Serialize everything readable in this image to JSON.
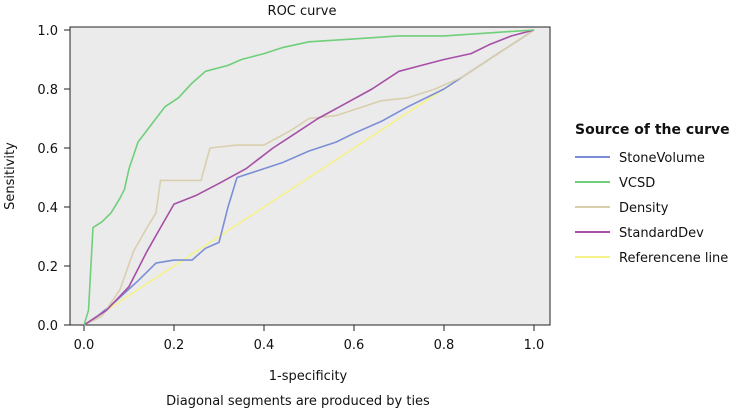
{
  "chart_data": {
    "type": "line",
    "title": "ROC curve",
    "xlabel": "1-specificity",
    "ylabel": "Sensitivity",
    "footnote": "Diagonal segments are produced by ties",
    "xlim": [
      0,
      1
    ],
    "ylim": [
      0,
      1
    ],
    "x_ticks": [
      "0.0",
      "0.2",
      "0.4",
      "0.6",
      "0.8",
      "1.0"
    ],
    "y_ticks": [
      "0.0",
      "0.2",
      "0.4",
      "0.6",
      "0.8",
      "1.0"
    ],
    "legend_title": "Source of the curve",
    "legend_position": "right",
    "grid": false,
    "background": "#ebebeb",
    "series": [
      {
        "name": "StoneVolume",
        "color": "#7b8ed6",
        "points": [
          [
            0,
            0
          ],
          [
            0.03,
            0.03
          ],
          [
            0.07,
            0.08
          ],
          [
            0.12,
            0.15
          ],
          [
            0.16,
            0.21
          ],
          [
            0.2,
            0.22
          ],
          [
            0.24,
            0.22
          ],
          [
            0.27,
            0.26
          ],
          [
            0.3,
            0.28
          ],
          [
            0.32,
            0.4
          ],
          [
            0.34,
            0.5
          ],
          [
            0.38,
            0.52
          ],
          [
            0.44,
            0.55
          ],
          [
            0.5,
            0.59
          ],
          [
            0.56,
            0.62
          ],
          [
            0.6,
            0.65
          ],
          [
            0.66,
            0.69
          ],
          [
            0.72,
            0.74
          ],
          [
            0.8,
            0.8
          ],
          [
            0.86,
            0.86
          ],
          [
            0.92,
            0.92
          ],
          [
            0.97,
            0.97
          ],
          [
            1,
            1
          ]
        ]
      },
      {
        "name": "VCSD",
        "color": "#6fcf7a",
        "points": [
          [
            0,
            0
          ],
          [
            0.01,
            0.05
          ],
          [
            0.02,
            0.33
          ],
          [
            0.04,
            0.35
          ],
          [
            0.06,
            0.38
          ],
          [
            0.08,
            0.43
          ],
          [
            0.09,
            0.46
          ],
          [
            0.1,
            0.53
          ],
          [
            0.12,
            0.62
          ],
          [
            0.15,
            0.68
          ],
          [
            0.18,
            0.74
          ],
          [
            0.21,
            0.77
          ],
          [
            0.24,
            0.82
          ],
          [
            0.27,
            0.86
          ],
          [
            0.32,
            0.88
          ],
          [
            0.35,
            0.9
          ],
          [
            0.4,
            0.92
          ],
          [
            0.44,
            0.94
          ],
          [
            0.5,
            0.96
          ],
          [
            0.6,
            0.97
          ],
          [
            0.7,
            0.98
          ],
          [
            0.8,
            0.98
          ],
          [
            0.9,
            0.99
          ],
          [
            1,
            1
          ]
        ]
      },
      {
        "name": "Density",
        "color": "#d9cfae",
        "points": [
          [
            0,
            0
          ],
          [
            0.04,
            0.03
          ],
          [
            0.08,
            0.12
          ],
          [
            0.11,
            0.25
          ],
          [
            0.14,
            0.33
          ],
          [
            0.16,
            0.38
          ],
          [
            0.17,
            0.49
          ],
          [
            0.22,
            0.49
          ],
          [
            0.26,
            0.49
          ],
          [
            0.28,
            0.6
          ],
          [
            0.34,
            0.61
          ],
          [
            0.4,
            0.61
          ],
          [
            0.46,
            0.66
          ],
          [
            0.5,
            0.7
          ],
          [
            0.56,
            0.71
          ],
          [
            0.62,
            0.74
          ],
          [
            0.66,
            0.76
          ],
          [
            0.72,
            0.77
          ],
          [
            0.78,
            0.8
          ],
          [
            0.84,
            0.84
          ],
          [
            0.9,
            0.9
          ],
          [
            0.95,
            0.95
          ],
          [
            1,
            1
          ]
        ]
      },
      {
        "name": "StandardDev",
        "color": "#a64fa6",
        "points": [
          [
            0,
            0
          ],
          [
            0.05,
            0.05
          ],
          [
            0.1,
            0.13
          ],
          [
            0.14,
            0.25
          ],
          [
            0.17,
            0.33
          ],
          [
            0.2,
            0.41
          ],
          [
            0.25,
            0.44
          ],
          [
            0.3,
            0.48
          ],
          [
            0.36,
            0.53
          ],
          [
            0.42,
            0.6
          ],
          [
            0.47,
            0.65
          ],
          [
            0.52,
            0.7
          ],
          [
            0.58,
            0.75
          ],
          [
            0.64,
            0.8
          ],
          [
            0.7,
            0.86
          ],
          [
            0.75,
            0.88
          ],
          [
            0.8,
            0.9
          ],
          [
            0.86,
            0.92
          ],
          [
            0.9,
            0.95
          ],
          [
            0.95,
            0.98
          ],
          [
            1,
            1
          ]
        ]
      },
      {
        "name": "Referencene line",
        "color": "#f5f28a",
        "points": [
          [
            0,
            0
          ],
          [
            1,
            1
          ]
        ]
      }
    ]
  }
}
